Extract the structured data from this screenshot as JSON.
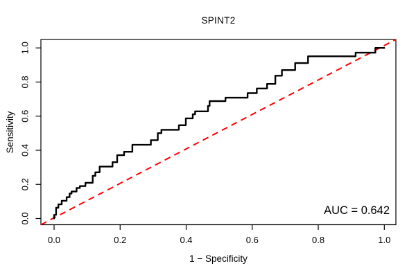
{
  "title": "SPINT2",
  "annotation": {
    "auc_label": "AUC = 0.642"
  },
  "colors": {
    "background": "#ffffff",
    "curve": "#000000",
    "diagonal": "#ff0000",
    "box": "#000000",
    "text": "#000000"
  },
  "chart_data": {
    "type": "line",
    "title": "SPINT2",
    "xlabel": "1 − Specificity",
    "ylabel": "Sensitivity",
    "xlim": [
      0,
      1
    ],
    "ylim": [
      0,
      1
    ],
    "grid": false,
    "x_ticks": [
      0.0,
      0.2,
      0.4,
      0.6,
      0.8,
      1.0
    ],
    "y_ticks": [
      0.0,
      0.2,
      0.4,
      0.6,
      0.8,
      1.0
    ],
    "x_tick_labels": [
      "0.0",
      "0.2",
      "0.4",
      "0.6",
      "0.8",
      "1.0"
    ],
    "y_tick_labels": [
      "0.0",
      "0.2",
      "0.4",
      "0.6",
      "0.8",
      "1.0"
    ],
    "annotations": [
      {
        "text": "AUC = 0.642",
        "x": 0.97,
        "y": 0.05,
        "align": "right"
      }
    ],
    "series": [
      {
        "name": "ROC curve",
        "style": "solid-step",
        "color": "#000000",
        "points": [
          [
            0.0,
            0.0
          ],
          [
            0.0,
            0.021
          ],
          [
            0.006,
            0.021
          ],
          [
            0.006,
            0.063
          ],
          [
            0.013,
            0.063
          ],
          [
            0.013,
            0.083
          ],
          [
            0.023,
            0.083
          ],
          [
            0.023,
            0.104
          ],
          [
            0.038,
            0.104
          ],
          [
            0.038,
            0.125
          ],
          [
            0.047,
            0.125
          ],
          [
            0.047,
            0.146
          ],
          [
            0.053,
            0.146
          ],
          [
            0.053,
            0.158
          ],
          [
            0.068,
            0.158
          ],
          [
            0.068,
            0.179
          ],
          [
            0.078,
            0.179
          ],
          [
            0.078,
            0.19
          ],
          [
            0.095,
            0.19
          ],
          [
            0.095,
            0.209
          ],
          [
            0.117,
            0.209
          ],
          [
            0.117,
            0.25
          ],
          [
            0.125,
            0.25
          ],
          [
            0.125,
            0.271
          ],
          [
            0.138,
            0.271
          ],
          [
            0.138,
            0.304
          ],
          [
            0.177,
            0.304
          ],
          [
            0.177,
            0.33
          ],
          [
            0.191,
            0.33
          ],
          [
            0.191,
            0.371
          ],
          [
            0.212,
            0.371
          ],
          [
            0.212,
            0.391
          ],
          [
            0.237,
            0.391
          ],
          [
            0.237,
            0.432
          ],
          [
            0.293,
            0.432
          ],
          [
            0.293,
            0.459
          ],
          [
            0.314,
            0.459
          ],
          [
            0.314,
            0.5
          ],
          [
            0.325,
            0.5
          ],
          [
            0.325,
            0.52
          ],
          [
            0.378,
            0.52
          ],
          [
            0.378,
            0.547
          ],
          [
            0.399,
            0.547
          ],
          [
            0.399,
            0.587
          ],
          [
            0.42,
            0.587
          ],
          [
            0.42,
            0.611
          ],
          [
            0.427,
            0.611
          ],
          [
            0.427,
            0.628
          ],
          [
            0.466,
            0.628
          ],
          [
            0.466,
            0.66
          ],
          [
            0.471,
            0.66
          ],
          [
            0.471,
            0.688
          ],
          [
            0.519,
            0.688
          ],
          [
            0.519,
            0.708
          ],
          [
            0.586,
            0.708
          ],
          [
            0.586,
            0.735
          ],
          [
            0.614,
            0.735
          ],
          [
            0.614,
            0.762
          ],
          [
            0.645,
            0.762
          ],
          [
            0.645,
            0.789
          ],
          [
            0.67,
            0.789
          ],
          [
            0.67,
            0.837
          ],
          [
            0.69,
            0.837
          ],
          [
            0.69,
            0.87
          ],
          [
            0.73,
            0.87
          ],
          [
            0.73,
            0.911
          ],
          [
            0.769,
            0.911
          ],
          [
            0.769,
            0.951
          ],
          [
            0.913,
            0.951
          ],
          [
            0.913,
            0.972
          ],
          [
            0.973,
            0.972
          ],
          [
            0.973,
            1.0
          ],
          [
            1.0,
            1.0
          ]
        ]
      },
      {
        "name": "chance reference diagonal",
        "style": "dashed",
        "color": "#ff0000",
        "points": [
          [
            0,
            0
          ],
          [
            1,
            1
          ]
        ]
      }
    ]
  }
}
